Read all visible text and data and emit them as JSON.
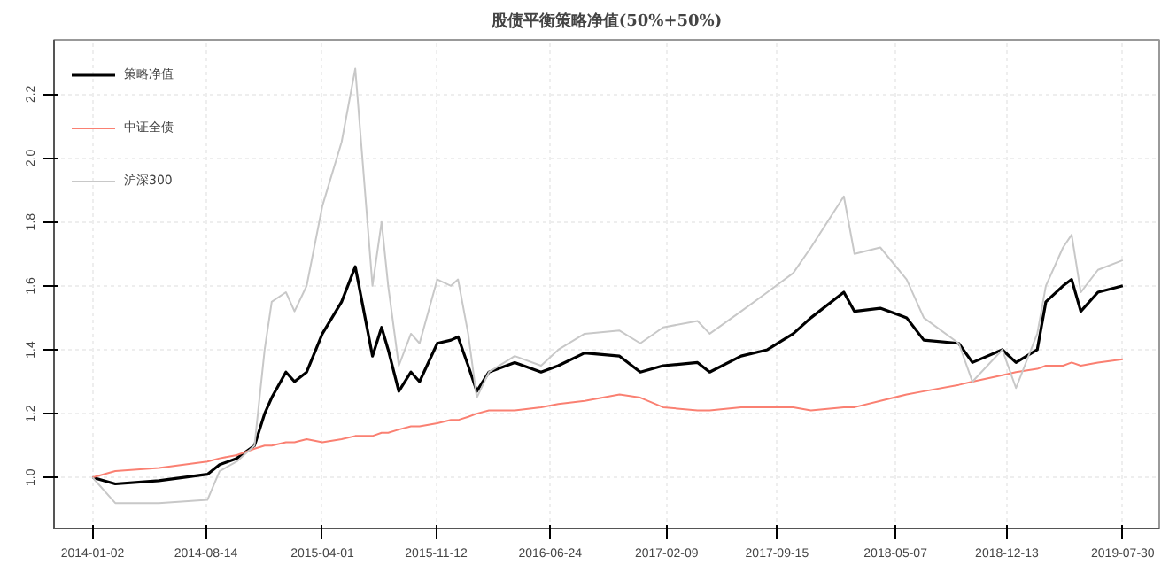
{
  "chart_data": {
    "type": "line",
    "title": "股债平衡策略净值(50%+50%)",
    "x": [
      "2014-01-02",
      "2014-02-16",
      "2014-05-13",
      "2014-08-17",
      "2014-09-10",
      "2014-10-14",
      "2014-11-18",
      "2014-12-08",
      "2014-12-22",
      "2015-01-19",
      "2015-02-05",
      "2015-03-01",
      "2015-04-01",
      "2015-05-09",
      "2015-06-05",
      "2015-07-09",
      "2015-07-27",
      "2015-08-09",
      "2015-08-30",
      "2015-09-23",
      "2015-10-10",
      "2015-11-14",
      "2015-12-11",
      "2015-12-25",
      "2016-01-14",
      "2016-01-31",
      "2016-02-24",
      "2016-04-15",
      "2016-06-06",
      "2016-07-10",
      "2016-08-31",
      "2016-11-08",
      "2016-12-19",
      "2017-02-02",
      "2017-04-11",
      "2017-05-05",
      "2017-07-06",
      "2017-08-27",
      "2017-10-17",
      "2017-11-21",
      "2018-01-25",
      "2018-02-15",
      "2018-04-07",
      "2018-05-29",
      "2018-07-02",
      "2018-09-09",
      "2018-10-06",
      "2018-12-04",
      "2018-12-31",
      "2019-02-11",
      "2019-02-28",
      "2019-04-03",
      "2019-04-20",
      "2019-05-08",
      "2019-06-11",
      "2019-07-30"
    ],
    "series": [
      {
        "name": "策略净值",
        "color": "#000000",
        "values": [
          1.0,
          0.98,
          0.99,
          1.01,
          1.04,
          1.06,
          1.1,
          1.2,
          1.25,
          1.33,
          1.3,
          1.33,
          1.45,
          1.55,
          1.66,
          1.38,
          1.47,
          1.4,
          1.27,
          1.33,
          1.3,
          1.42,
          1.43,
          1.44,
          1.35,
          1.27,
          1.33,
          1.36,
          1.33,
          1.35,
          1.39,
          1.38,
          1.33,
          1.35,
          1.36,
          1.33,
          1.38,
          1.4,
          1.45,
          1.5,
          1.58,
          1.52,
          1.53,
          1.5,
          1.43,
          1.42,
          1.36,
          1.4,
          1.36,
          1.4,
          1.55,
          1.6,
          1.62,
          1.52,
          1.58,
          1.6
        ]
      },
      {
        "name": "中证全债",
        "color": "#fa8072",
        "values": [
          1.0,
          1.02,
          1.03,
          1.05,
          1.06,
          1.07,
          1.09,
          1.1,
          1.1,
          1.11,
          1.11,
          1.12,
          1.11,
          1.12,
          1.13,
          1.13,
          1.14,
          1.14,
          1.15,
          1.16,
          1.16,
          1.17,
          1.18,
          1.18,
          1.19,
          1.2,
          1.21,
          1.21,
          1.22,
          1.23,
          1.24,
          1.26,
          1.25,
          1.22,
          1.21,
          1.21,
          1.22,
          1.22,
          1.22,
          1.21,
          1.22,
          1.22,
          1.24,
          1.26,
          1.27,
          1.29,
          1.3,
          1.32,
          1.33,
          1.34,
          1.35,
          1.35,
          1.36,
          1.35,
          1.36,
          1.37
        ]
      },
      {
        "name": "沪深300",
        "color": "#c8c8c8",
        "values": [
          1.0,
          0.92,
          0.92,
          0.93,
          1.02,
          1.05,
          1.1,
          1.4,
          1.55,
          1.58,
          1.52,
          1.6,
          1.85,
          2.05,
          2.28,
          1.6,
          1.8,
          1.6,
          1.35,
          1.45,
          1.42,
          1.62,
          1.6,
          1.62,
          1.45,
          1.25,
          1.33,
          1.38,
          1.35,
          1.4,
          1.45,
          1.46,
          1.42,
          1.47,
          1.49,
          1.45,
          1.52,
          1.58,
          1.64,
          1.72,
          1.88,
          1.7,
          1.72,
          1.62,
          1.5,
          1.42,
          1.3,
          1.4,
          1.28,
          1.45,
          1.6,
          1.72,
          1.76,
          1.58,
          1.65,
          1.68
        ]
      }
    ],
    "xlim": [
      "2013-10-18",
      "2019-10-10"
    ],
    "xticks": [
      "2014-01-02",
      "2014-08-14",
      "2015-04-01",
      "2015-11-12",
      "2016-06-24",
      "2017-02-09",
      "2017-09-15",
      "2018-05-07",
      "2018-12-13",
      "2019-07-30"
    ],
    "ylim": [
      0.84,
      2.37
    ],
    "yticks": [
      {
        "value": 1.0,
        "label": "1.0"
      },
      {
        "value": 1.2,
        "label": "1.2"
      },
      {
        "value": 1.4,
        "label": "1.4"
      },
      {
        "value": 1.6,
        "label": "1.6"
      },
      {
        "value": 1.8,
        "label": "1.8"
      },
      {
        "value": 2.0,
        "label": "2.0"
      },
      {
        "value": 2.2,
        "label": "2.2"
      }
    ],
    "grid": true,
    "legend": "top left"
  }
}
